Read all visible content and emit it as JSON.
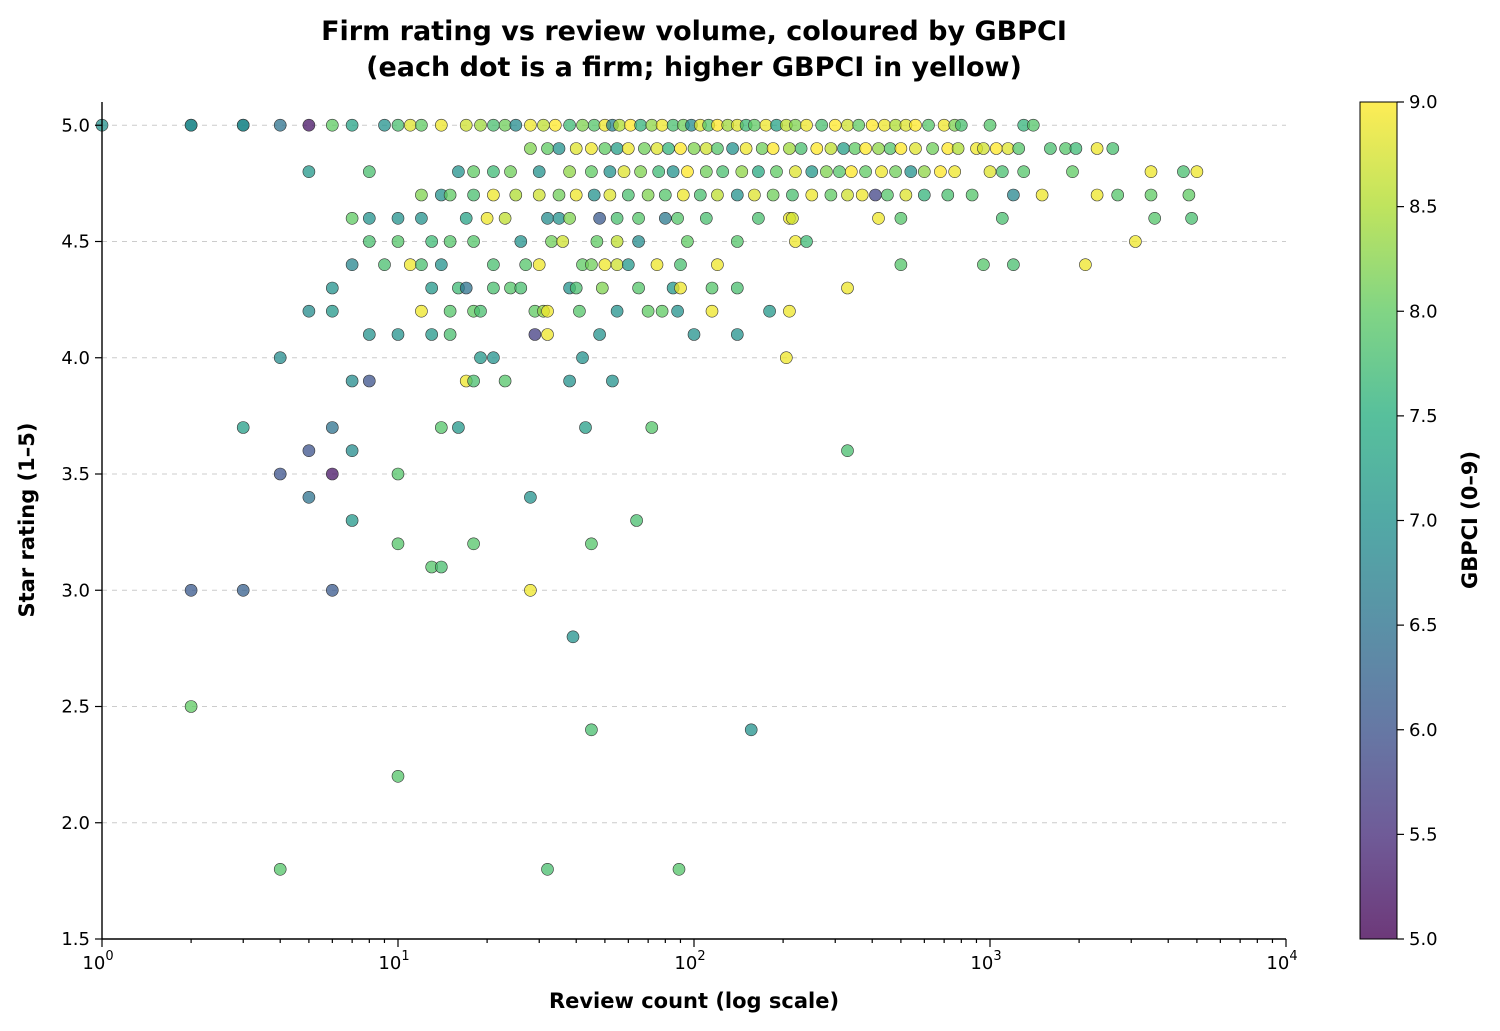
{
  "chart_data": {
    "type": "scatter",
    "title_line1": "Firm rating vs review volume, coloured by GBPCI",
    "title_line2": "(each dot is a firm; higher GBPCI in yellow)",
    "xlabel": "Review count (log scale)",
    "ylabel": "Star rating (1–5)",
    "colorbar_label": "GBPCI (0–9)",
    "x_scale": "log",
    "xlim": [
      1,
      10000
    ],
    "ylim": [
      1.5,
      5.1
    ],
    "x_ticks": [
      {
        "base": "10",
        "exp": "0",
        "value": 1
      },
      {
        "base": "10",
        "exp": "1",
        "value": 10
      },
      {
        "base": "10",
        "exp": "2",
        "value": 100
      },
      {
        "base": "10",
        "exp": "3",
        "value": 1000
      },
      {
        "base": "10",
        "exp": "4",
        "value": 10000
      }
    ],
    "y_ticks": [
      "1.5",
      "2.0",
      "2.5",
      "3.0",
      "3.5",
      "4.0",
      "4.5",
      "5.0"
    ],
    "colorbar_range": [
      5.0,
      9.0
    ],
    "colorbar_ticks": [
      "5.0",
      "5.5",
      "6.0",
      "6.5",
      "7.0",
      "7.5",
      "8.0",
      "8.5",
      "9.0"
    ],
    "colormap": "viridis",
    "grid": "y-dashed",
    "points": [
      [
        1,
        5.0,
        7.0
      ],
      [
        2,
        5.0,
        6.8
      ],
      [
        2,
        5.0,
        6.9
      ],
      [
        3,
        5.0,
        6.8
      ],
      [
        3,
        5.0,
        6.9
      ],
      [
        4,
        5.0,
        6.5
      ],
      [
        5,
        5.0,
        5.2
      ],
      [
        6,
        5.0,
        8.0
      ],
      [
        7,
        5.0,
        7.3
      ],
      [
        9,
        5.0,
        7.0
      ],
      [
        10,
        5.0,
        7.8
      ],
      [
        11,
        5.0,
        8.8
      ],
      [
        12,
        5.0,
        8.0
      ],
      [
        14,
        5.0,
        8.9
      ],
      [
        17,
        5.0,
        8.7
      ],
      [
        19,
        5.0,
        8.4
      ],
      [
        21,
        5.0,
        7.8
      ],
      [
        23,
        5.0,
        8.1
      ],
      [
        25,
        5.0,
        6.9
      ],
      [
        28,
        5.0,
        8.9
      ],
      [
        31,
        5.0,
        8.6
      ],
      [
        34,
        5.0,
        9.0
      ],
      [
        38,
        5.0,
        7.7
      ],
      [
        42,
        5.0,
        8.2
      ],
      [
        46,
        5.0,
        7.9
      ],
      [
        50,
        5.0,
        8.9
      ],
      [
        53,
        5.0,
        6.8
      ],
      [
        56,
        5.0,
        8.5
      ],
      [
        61,
        5.0,
        9.0
      ],
      [
        66,
        5.0,
        7.6
      ],
      [
        72,
        5.0,
        8.3
      ],
      [
        78,
        5.0,
        8.9
      ],
      [
        85,
        5.0,
        7.8
      ],
      [
        92,
        5.0,
        8.1
      ],
      [
        98,
        5.0,
        6.9
      ],
      [
        105,
        5.0,
        8.8
      ],
      [
        112,
        5.0,
        7.9
      ],
      [
        120,
        5.0,
        9.0
      ],
      [
        130,
        5.0,
        8.4
      ],
      [
        140,
        5.0,
        8.8
      ],
      [
        150,
        5.0,
        7.7
      ],
      [
        160,
        5.0,
        8.0
      ],
      [
        175,
        5.0,
        8.9
      ],
      [
        190,
        5.0,
        7.3
      ],
      [
        205,
        5.0,
        8.6
      ],
      [
        220,
        5.0,
        8.2
      ],
      [
        240,
        5.0,
        8.9
      ],
      [
        270,
        5.0,
        7.8
      ],
      [
        300,
        5.0,
        9.0
      ],
      [
        330,
        5.0,
        8.7
      ],
      [
        360,
        5.0,
        8.0
      ],
      [
        400,
        5.0,
        9.0
      ],
      [
        440,
        5.0,
        8.9
      ],
      [
        480,
        5.0,
        8.5
      ],
      [
        520,
        5.0,
        8.8
      ],
      [
        560,
        5.0,
        9.0
      ],
      [
        620,
        5.0,
        7.9
      ],
      [
        700,
        5.0,
        8.9
      ],
      [
        760,
        5.0,
        8.2
      ],
      [
        800,
        5.0,
        7.8
      ],
      [
        1000,
        5.0,
        7.9
      ],
      [
        1300,
        5.0,
        7.6
      ],
      [
        1400,
        5.0,
        7.9
      ],
      [
        28,
        4.9,
        8.2
      ],
      [
        32,
        4.9,
        8.0
      ],
      [
        35,
        4.9,
        7.0
      ],
      [
        40,
        4.9,
        8.8
      ],
      [
        45,
        4.9,
        8.9
      ],
      [
        50,
        4.9,
        8.0
      ],
      [
        55,
        4.9,
        7.2
      ],
      [
        60,
        4.9,
        8.9
      ],
      [
        68,
        4.9,
        8.1
      ],
      [
        75,
        4.9,
        8.8
      ],
      [
        82,
        4.9,
        7.6
      ],
      [
        90,
        4.9,
        9.0
      ],
      [
        100,
        4.9,
        8.2
      ],
      [
        110,
        4.9,
        8.7
      ],
      [
        120,
        4.9,
        7.9
      ],
      [
        135,
        4.9,
        7.0
      ],
      [
        150,
        4.9,
        8.9
      ],
      [
        170,
        4.9,
        8.1
      ],
      [
        185,
        4.9,
        9.0
      ],
      [
        210,
        4.9,
        8.4
      ],
      [
        230,
        4.9,
        7.8
      ],
      [
        260,
        4.9,
        9.0
      ],
      [
        290,
        4.9,
        8.6
      ],
      [
        320,
        4.9,
        7.2
      ],
      [
        350,
        4.9,
        8.0
      ],
      [
        380,
        4.9,
        9.0
      ],
      [
        420,
        4.9,
        8.3
      ],
      [
        460,
        4.9,
        7.9
      ],
      [
        500,
        4.9,
        9.0
      ],
      [
        560,
        4.9,
        8.8
      ],
      [
        640,
        4.9,
        8.1
      ],
      [
        720,
        4.9,
        9.0
      ],
      [
        780,
        4.9,
        8.5
      ],
      [
        900,
        4.9,
        8.9
      ],
      [
        950,
        4.9,
        8.7
      ],
      [
        1050,
        4.9,
        9.0
      ],
      [
        1150,
        4.9,
        8.8
      ],
      [
        1250,
        4.9,
        7.9
      ],
      [
        1600,
        4.9,
        7.8
      ],
      [
        1800,
        4.9,
        7.9
      ],
      [
        1950,
        4.9,
        7.7
      ],
      [
        2300,
        4.9,
        8.9
      ],
      [
        2600,
        4.9,
        7.8
      ],
      [
        8,
        4.8,
        7.8
      ],
      [
        5,
        4.8,
        7.1
      ],
      [
        16,
        4.8,
        7.0
      ],
      [
        18,
        4.8,
        8.0
      ],
      [
        21,
        4.8,
        7.7
      ],
      [
        24,
        4.8,
        8.1
      ],
      [
        30,
        4.8,
        7.0
      ],
      [
        38,
        4.8,
        8.3
      ],
      [
        45,
        4.8,
        8.0
      ],
      [
        52,
        4.8,
        7.0
      ],
      [
        58,
        4.8,
        8.8
      ],
      [
        66,
        4.8,
        8.2
      ],
      [
        76,
        4.8,
        7.7
      ],
      [
        85,
        4.8,
        7.0
      ],
      [
        95,
        4.8,
        9.0
      ],
      [
        110,
        4.8,
        8.1
      ],
      [
        125,
        4.8,
        7.8
      ],
      [
        145,
        4.8,
        8.3
      ],
      [
        165,
        4.8,
        7.4
      ],
      [
        190,
        4.8,
        8.0
      ],
      [
        220,
        4.8,
        8.8
      ],
      [
        250,
        4.8,
        7.1
      ],
      [
        280,
        4.8,
        8.2
      ],
      [
        310,
        4.8,
        7.9
      ],
      [
        340,
        4.8,
        9.0
      ],
      [
        380,
        4.8,
        8.0
      ],
      [
        430,
        4.8,
        8.9
      ],
      [
        480,
        4.8,
        8.1
      ],
      [
        540,
        4.8,
        7.0
      ],
      [
        600,
        4.8,
        8.3
      ],
      [
        680,
        4.8,
        9.0
      ],
      [
        760,
        4.8,
        8.9
      ],
      [
        1000,
        4.8,
        8.8
      ],
      [
        1100,
        4.8,
        7.8
      ],
      [
        1300,
        4.8,
        7.9
      ],
      [
        1900,
        4.8,
        8.0
      ],
      [
        3500,
        4.8,
        8.9
      ],
      [
        4500,
        4.8,
        7.8
      ],
      [
        5000,
        4.8,
        8.9
      ],
      [
        12,
        4.7,
        8.2
      ],
      [
        14,
        4.7,
        7.0
      ],
      [
        15,
        4.7,
        8.0
      ],
      [
        18,
        4.7,
        7.8
      ],
      [
        21,
        4.7,
        8.9
      ],
      [
        25,
        4.7,
        8.5
      ],
      [
        30,
        4.7,
        8.7
      ],
      [
        35,
        4.7,
        8.1
      ],
      [
        40,
        4.7,
        8.9
      ],
      [
        46,
        4.7,
        7.0
      ],
      [
        52,
        4.7,
        8.8
      ],
      [
        60,
        4.7,
        7.8
      ],
      [
        70,
        4.7,
        8.2
      ],
      [
        80,
        4.7,
        7.9
      ],
      [
        92,
        4.7,
        8.9
      ],
      [
        105,
        4.7,
        7.8
      ],
      [
        120,
        4.7,
        8.6
      ],
      [
        140,
        4.7,
        7.0
      ],
      [
        160,
        4.7,
        8.8
      ],
      [
        185,
        4.7,
        8.1
      ],
      [
        215,
        4.7,
        7.8
      ],
      [
        250,
        4.7,
        8.9
      ],
      [
        290,
        4.7,
        8.0
      ],
      [
        330,
        4.7,
        8.7
      ],
      [
        370,
        4.7,
        8.9
      ],
      [
        410,
        4.7,
        5.8
      ],
      [
        450,
        4.7,
        7.9
      ],
      [
        520,
        4.7,
        8.8
      ],
      [
        600,
        4.7,
        7.6
      ],
      [
        720,
        4.7,
        7.8
      ],
      [
        870,
        4.7,
        7.9
      ],
      [
        1200,
        4.7,
        6.8
      ],
      [
        1500,
        4.7,
        8.9
      ],
      [
        2300,
        4.7,
        8.9
      ],
      [
        2700,
        4.7,
        7.9
      ],
      [
        3500,
        4.7,
        8.0
      ],
      [
        4700,
        4.7,
        8.0
      ],
      [
        7,
        4.6,
        8.0
      ],
      [
        8,
        4.6,
        7.0
      ],
      [
        10,
        4.6,
        7.0
      ],
      [
        12,
        4.6,
        7.0
      ],
      [
        17,
        4.6,
        7.3
      ],
      [
        20,
        4.6,
        8.9
      ],
      [
        23,
        4.6,
        8.6
      ],
      [
        32,
        4.6,
        6.9
      ],
      [
        35,
        4.6,
        7.0
      ],
      [
        38,
        4.6,
        8.2
      ],
      [
        48,
        4.6,
        6.1
      ],
      [
        55,
        4.6,
        7.8
      ],
      [
        65,
        4.6,
        7.9
      ],
      [
        80,
        4.6,
        6.6
      ],
      [
        88,
        4.6,
        7.9
      ],
      [
        110,
        4.6,
        7.8
      ],
      [
        165,
        4.6,
        7.8
      ],
      [
        210,
        4.6,
        8.9
      ],
      [
        215,
        4.6,
        8.7
      ],
      [
        420,
        4.6,
        8.9
      ],
      [
        500,
        4.6,
        7.9
      ],
      [
        1100,
        4.6,
        7.8
      ],
      [
        3600,
        4.6,
        7.9
      ],
      [
        4800,
        4.6,
        7.8
      ],
      [
        8,
        4.5,
        7.8
      ],
      [
        10,
        4.5,
        7.9
      ],
      [
        13,
        4.5,
        7.7
      ],
      [
        15,
        4.5,
        7.9
      ],
      [
        18,
        4.5,
        7.9
      ],
      [
        26,
        4.5,
        7.0
      ],
      [
        33,
        4.5,
        8.1
      ],
      [
        36,
        4.5,
        8.7
      ],
      [
        47,
        4.5,
        8.0
      ],
      [
        55,
        4.5,
        8.6
      ],
      [
        65,
        4.5,
        6.9
      ],
      [
        95,
        4.5,
        8.0
      ],
      [
        140,
        4.5,
        7.9
      ],
      [
        220,
        4.5,
        8.9
      ],
      [
        240,
        4.5,
        7.7
      ],
      [
        3100,
        4.5,
        8.9
      ],
      [
        7,
        4.4,
        6.8
      ],
      [
        9,
        4.4,
        7.8
      ],
      [
        11,
        4.4,
        8.9
      ],
      [
        12,
        4.4,
        7.8
      ],
      [
        14,
        4.4,
        7.0
      ],
      [
        21,
        4.4,
        7.8
      ],
      [
        27,
        4.4,
        7.9
      ],
      [
        30,
        4.4,
        8.9
      ],
      [
        42,
        4.4,
        8.0
      ],
      [
        45,
        4.4,
        8.1
      ],
      [
        50,
        4.4,
        8.9
      ],
      [
        55,
        4.4,
        8.7
      ],
      [
        60,
        4.4,
        7.1
      ],
      [
        75,
        4.4,
        8.9
      ],
      [
        90,
        4.4,
        7.8
      ],
      [
        120,
        4.4,
        8.9
      ],
      [
        500,
        4.4,
        7.9
      ],
      [
        950,
        4.4,
        7.9
      ],
      [
        1200,
        4.4,
        7.8
      ],
      [
        2100,
        4.4,
        8.9
      ],
      [
        6,
        4.3,
        7.0
      ],
      [
        13,
        4.3,
        7.1
      ],
      [
        16,
        4.3,
        7.7
      ],
      [
        17,
        4.3,
        6.5
      ],
      [
        21,
        4.3,
        7.8
      ],
      [
        24,
        4.3,
        7.9
      ],
      [
        26,
        4.3,
        7.8
      ],
      [
        38,
        4.3,
        7.0
      ],
      [
        40,
        4.3,
        7.8
      ],
      [
        49,
        4.3,
        8.2
      ],
      [
        65,
        4.3,
        7.9
      ],
      [
        85,
        4.3,
        7.1
      ],
      [
        90,
        4.3,
        8.9
      ],
      [
        115,
        4.3,
        7.9
      ],
      [
        140,
        4.3,
        7.8
      ],
      [
        330,
        4.3,
        8.9
      ],
      [
        5,
        4.2,
        6.9
      ],
      [
        6,
        4.2,
        7.1
      ],
      [
        12,
        4.2,
        8.9
      ],
      [
        15,
        4.2,
        7.9
      ],
      [
        18,
        4.2,
        8.0
      ],
      [
        19,
        4.2,
        7.8
      ],
      [
        29,
        4.2,
        8.0
      ],
      [
        31,
        4.2,
        8.3
      ],
      [
        32,
        4.2,
        8.9
      ],
      [
        41,
        4.2,
        7.9
      ],
      [
        55,
        4.2,
        7.0
      ],
      [
        70,
        4.2,
        8.0
      ],
      [
        78,
        4.2,
        8.0
      ],
      [
        88,
        4.2,
        7.0
      ],
      [
        115,
        4.2,
        8.9
      ],
      [
        180,
        4.2,
        7.1
      ],
      [
        210,
        4.2,
        8.9
      ],
      [
        8,
        4.1,
        7.0
      ],
      [
        10,
        4.1,
        7.0
      ],
      [
        13,
        4.1,
        7.1
      ],
      [
        15,
        4.1,
        7.8
      ],
      [
        29,
        4.1,
        5.7
      ],
      [
        32,
        4.1,
        8.9
      ],
      [
        48,
        4.1,
        7.0
      ],
      [
        100,
        4.1,
        7.0
      ],
      [
        140,
        4.1,
        7.0
      ],
      [
        4,
        4.0,
        6.9
      ],
      [
        19,
        4.0,
        7.1
      ],
      [
        21,
        4.0,
        7.0
      ],
      [
        42,
        4.0,
        7.0
      ],
      [
        205,
        4.0,
        8.9
      ],
      [
        7,
        3.9,
        6.9
      ],
      [
        8,
        3.9,
        6.0
      ],
      [
        17,
        3.9,
        8.9
      ],
      [
        18,
        3.9,
        7.8
      ],
      [
        23,
        3.9,
        7.9
      ],
      [
        38,
        3.9,
        7.0
      ],
      [
        53,
        3.9,
        7.0
      ],
      [
        3,
        3.7,
        7.2
      ],
      [
        6,
        3.7,
        6.5
      ],
      [
        14,
        3.7,
        7.9
      ],
      [
        16,
        3.7,
        7.1
      ],
      [
        43,
        3.7,
        7.2
      ],
      [
        72,
        3.7,
        7.9
      ],
      [
        5,
        3.6,
        6.0
      ],
      [
        7,
        3.6,
        6.9
      ],
      [
        330,
        3.6,
        7.8
      ],
      [
        4,
        3.5,
        6.0
      ],
      [
        6,
        3.5,
        5.2
      ],
      [
        10,
        3.5,
        7.9
      ],
      [
        5,
        3.4,
        6.5
      ],
      [
        28,
        3.4,
        7.0
      ],
      [
        7,
        3.3,
        7.1
      ],
      [
        64,
        3.3,
        7.8
      ],
      [
        10,
        3.2,
        7.9
      ],
      [
        18,
        3.2,
        7.9
      ],
      [
        45,
        3.2,
        7.9
      ],
      [
        13,
        3.1,
        7.9
      ],
      [
        14,
        3.1,
        7.8
      ],
      [
        2,
        3.0,
        6.1
      ],
      [
        3,
        3.0,
        6.2
      ],
      [
        6,
        3.0,
        6.1
      ],
      [
        28,
        3.0,
        8.9
      ],
      [
        39,
        2.8,
        7.0
      ],
      [
        2,
        2.5,
        8.0
      ],
      [
        45,
        2.4,
        7.8
      ],
      [
        156,
        2.4,
        7.0
      ],
      [
        10,
        2.2,
        7.9
      ],
      [
        4,
        1.8,
        7.9
      ],
      [
        32,
        1.8,
        7.8
      ],
      [
        89,
        1.8,
        7.9
      ]
    ]
  }
}
